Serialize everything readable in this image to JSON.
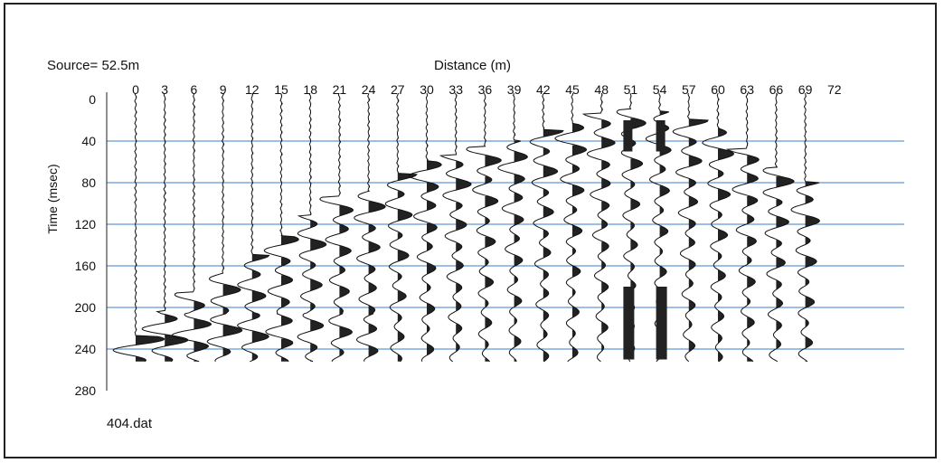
{
  "chart_data": {
    "type": "seismogram",
    "title": "",
    "source_label": "Source= 52.5m",
    "file_label": "404.dat",
    "xlabel": "Distance (m)",
    "ylabel": "Time (msec)",
    "x_ticks": [
      "0",
      "3",
      "6",
      "9",
      "12",
      "15",
      "18",
      "21",
      "24",
      "27",
      "30",
      "33",
      "36",
      "39",
      "42",
      "45",
      "48",
      "51",
      "54",
      "57",
      "60",
      "63",
      "66",
      "69",
      "72"
    ],
    "y_ticks": [
      "0",
      "40",
      "80",
      "120",
      "160",
      "200",
      "240",
      "280"
    ],
    "xlim": [
      0,
      72
    ],
    "ylim": [
      0,
      280
    ],
    "y_inverted": true,
    "gridlines_y": [
      40,
      80,
      120,
      160,
      200,
      240
    ],
    "grid_color": "#3a7fd0",
    "trace_offsets": [
      0,
      3,
      6,
      9,
      12,
      15,
      18,
      21,
      24,
      27,
      30,
      33,
      36,
      39,
      42,
      45,
      48,
      51,
      54,
      57,
      60,
      63,
      66,
      69
    ],
    "first_break_ms": [
      228,
      204,
      186,
      168,
      150,
      132,
      112,
      94,
      88,
      72,
      60,
      54,
      46,
      40,
      30,
      24,
      14,
      10,
      12,
      20,
      28,
      48,
      66,
      80
    ],
    "wiggle_fill": "#222222"
  }
}
